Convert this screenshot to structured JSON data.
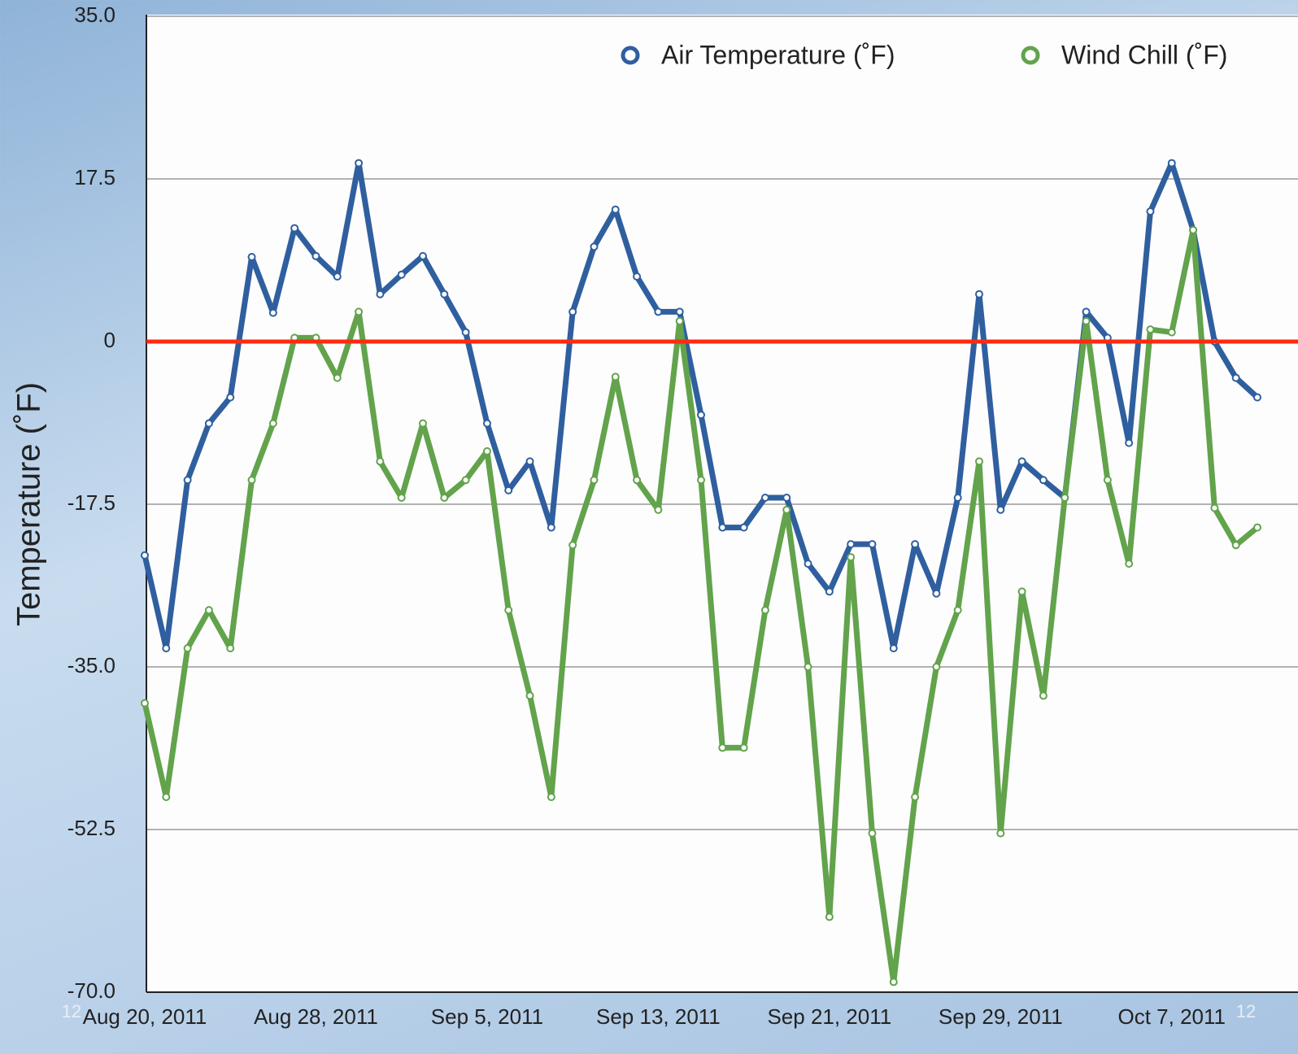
{
  "chart_data": {
    "type": "line",
    "ylabel": "Temperature (˚F)",
    "categories": [
      "Aug 20, 2011",
      null,
      null,
      null,
      null,
      null,
      null,
      null,
      "Aug 28, 2011",
      null,
      null,
      null,
      null,
      null,
      null,
      null,
      "Sep 5, 2011",
      null,
      null,
      null,
      null,
      null,
      null,
      null,
      "Sep 13, 2011",
      null,
      null,
      null,
      null,
      null,
      null,
      null,
      "Sep 21, 2011",
      null,
      null,
      null,
      null,
      null,
      null,
      null,
      "Sep 29, 2011",
      null,
      null,
      null,
      null,
      null,
      null,
      null,
      "Oct 7, 2011",
      null,
      null,
      null,
      null
    ],
    "series": [
      {
        "name": "Air Temperature (˚F)",
        "color": "#2f5f9f",
        "values": [
          -23,
          -33,
          -14.9,
          -8.8,
          -6,
          9.1,
          3.1,
          12.2,
          9.2,
          7,
          19.2,
          5.1,
          7.2,
          9.2,
          5.1,
          1,
          -8.8,
          -16,
          -12.9,
          -20,
          3.2,
          10.2,
          14.2,
          7,
          3.2,
          3.2,
          -7.9,
          -20,
          -20,
          -16.8,
          -16.8,
          -23.9,
          -26.9,
          -21.8,
          -21.8,
          -33,
          -21.8,
          -27.1,
          -16.8,
          5.1,
          -18.1,
          -12.9,
          -14.9,
          -16.8,
          3.2,
          0.4,
          -10.9,
          14,
          19.2,
          12,
          0,
          -3.9,
          -6
        ]
      },
      {
        "name": "Wind Chill (˚F)",
        "color": "#62a34c",
        "values": [
          -38.9,
          -49,
          -33,
          -28.9,
          -33,
          -14.9,
          -8.8,
          0.4,
          0.4,
          -3.9,
          3.2,
          -12.9,
          -16.8,
          -8.8,
          -16.8,
          -14.9,
          -11.8,
          -28.9,
          -38.1,
          -49,
          -21.9,
          -14.9,
          -3.8,
          -14.9,
          -18.1,
          2.2,
          -14.9,
          -43.7,
          -43.7,
          -28.9,
          -18.1,
          -35,
          -61.9,
          -23.2,
          -52.9,
          -68.9,
          -49,
          -35,
          -28.9,
          -12.9,
          -52.9,
          -26.9,
          -38.1,
          -16.8,
          2.2,
          -14.9,
          -23.9,
          1.3,
          1,
          12,
          -17.9,
          -21.9,
          -20
        ]
      }
    ],
    "ylim": [
      -70,
      35
    ],
    "yticks": [
      {
        "value": -70,
        "label": "-70.0"
      },
      -52.5,
      {
        "value": -35,
        "label": "-35.0"
      },
      -17.5,
      0,
      17.5,
      {
        "value": 35,
        "label": "35.0"
      }
    ],
    "grid": true,
    "reference_line": {
      "value": 0,
      "color": "#ff2a10"
    },
    "legend": "top-right",
    "page_number": "12"
  }
}
